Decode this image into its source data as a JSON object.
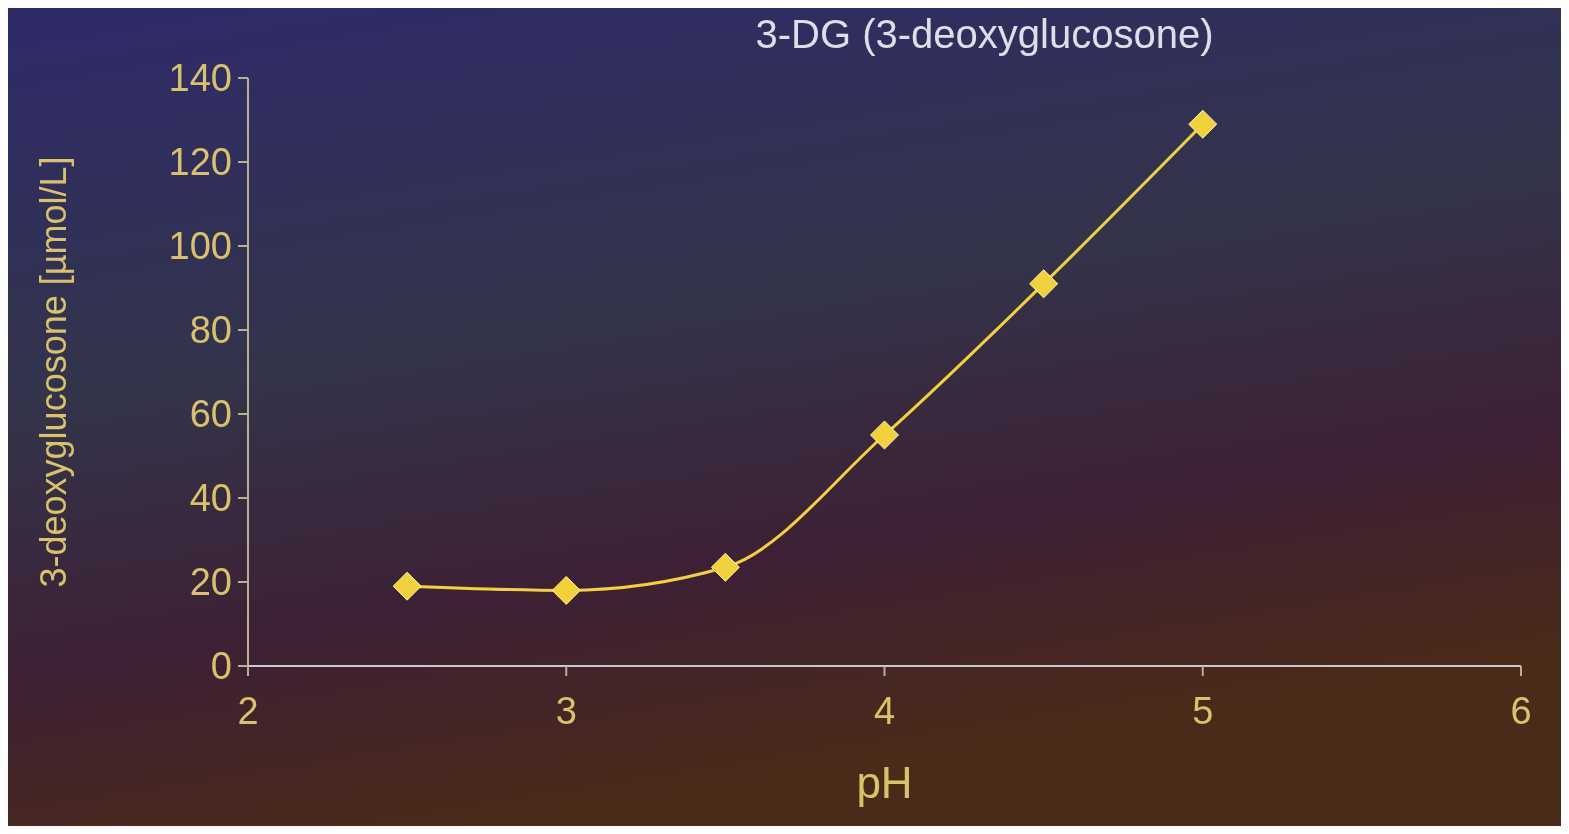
{
  "chart_data": {
    "type": "line",
    "title": "3-DG (3-deoxyglucosone)",
    "xlabel": "pH",
    "ylabel": "3-deoxyglucosone [µmol/L]",
    "x": [
      2.5,
      3,
      3.5,
      4,
      4.5,
      5
    ],
    "series": [
      {
        "color": "#f2d23a",
        "values": [
          19,
          18,
          23.5,
          55,
          91,
          129
        ]
      }
    ],
    "xlim": [
      2,
      6
    ],
    "xticks": [
      2,
      3,
      4,
      5,
      6
    ],
    "ylim": [
      0,
      140
    ],
    "yticks": [
      0,
      20,
      40,
      60,
      80,
      100,
      120,
      140
    ],
    "grid": false,
    "marker": "diamond",
    "line_style": "solid"
  }
}
